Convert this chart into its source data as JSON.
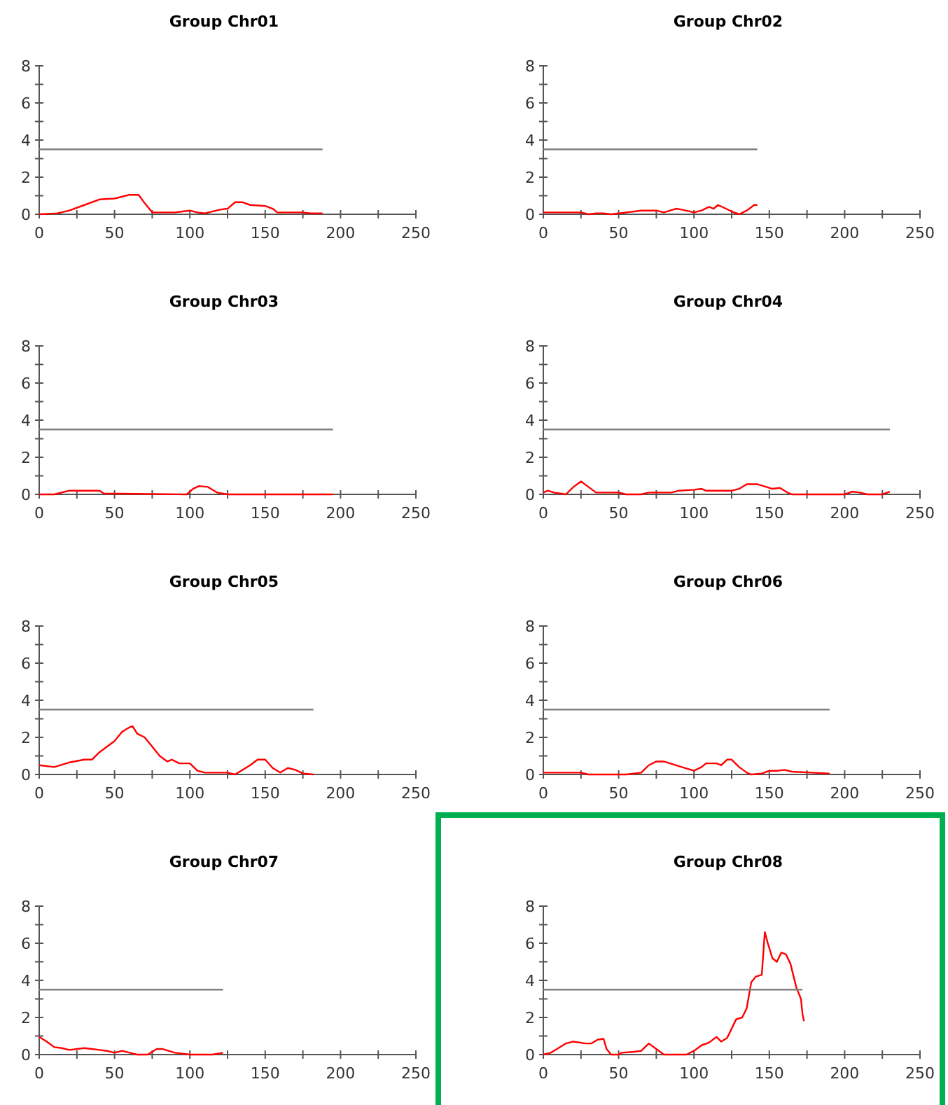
{
  "chart_data": [
    {
      "type": "line",
      "title": "Group Chr01",
      "xlim": [
        0,
        250
      ],
      "xticks": [
        0,
        {
          "value": 25,
          "label": null
        },
        50,
        {
          "value": 75,
          "label": null
        },
        100,
        {
          "value": 125,
          "label": null
        },
        150,
        {
          "value": 175,
          "label": null
        },
        200,
        {
          "value": 225,
          "label": null
        },
        250
      ],
      "ylim": [
        0,
        8
      ],
      "yticks": [
        0,
        {
          "value": 1,
          "label": null
        },
        2,
        {
          "value": 3,
          "label": null
        },
        4,
        {
          "value": 5,
          "label": null
        },
        6,
        {
          "value": 7,
          "label": null
        },
        8
      ],
      "series": [
        {
          "color": "#ff0000",
          "x": [
            0,
            12,
            20,
            30,
            40,
            50,
            60,
            66,
            70,
            75,
            90,
            100,
            105,
            110,
            120,
            125,
            130,
            135,
            140,
            150,
            155,
            158,
            175,
            180,
            188
          ],
          "values": [
            0,
            0.05,
            0.2,
            0.5,
            0.8,
            0.85,
            1.05,
            1.05,
            0.6,
            0.1,
            0.1,
            0.2,
            0.1,
            0.05,
            0.25,
            0.3,
            0.65,
            0.65,
            0.5,
            0.45,
            0.3,
            0.1,
            0.1,
            0.05,
            0.05
          ]
        },
        {
          "color": "#808080",
          "x": [
            0,
            188
          ],
          "values": [
            3.5,
            3.5
          ]
        }
      ]
    },
    {
      "type": "line",
      "title": "Group Chr02",
      "xlim": [
        0,
        250
      ],
      "xticks": [
        0,
        {
          "value": 25,
          "label": null
        },
        50,
        {
          "value": 75,
          "label": null
        },
        100,
        {
          "value": 125,
          "label": null
        },
        150,
        {
          "value": 175,
          "label": null
        },
        200,
        {
          "value": 225,
          "label": null
        },
        250
      ],
      "ylim": [
        0,
        8
      ],
      "yticks": [
        0,
        {
          "value": 1,
          "label": null
        },
        2,
        {
          "value": 3,
          "label": null
        },
        4,
        {
          "value": 5,
          "label": null
        },
        6,
        {
          "value": 7,
          "label": null
        },
        8
      ],
      "series": [
        {
          "color": "#ff0000",
          "x": [
            0,
            25,
            30,
            35,
            40,
            45,
            55,
            65,
            75,
            80,
            88,
            92,
            100,
            105,
            110,
            113,
            116,
            120,
            125,
            130,
            135,
            140,
            142
          ],
          "values": [
            0.1,
            0.1,
            0,
            0.05,
            0.05,
            0,
            0.1,
            0.2,
            0.2,
            0.1,
            0.3,
            0.25,
            0.1,
            0.2,
            0.4,
            0.3,
            0.5,
            0.35,
            0.15,
            0,
            0.2,
            0.5,
            0.5
          ]
        },
        {
          "color": "#808080",
          "x": [
            0,
            142
          ],
          "values": [
            3.5,
            3.5
          ]
        }
      ]
    },
    {
      "type": "line",
      "title": "Group Chr03",
      "xlim": [
        0,
        250
      ],
      "xticks": [
        0,
        {
          "value": 25,
          "label": null
        },
        50,
        {
          "value": 75,
          "label": null
        },
        100,
        {
          "value": 125,
          "label": null
        },
        150,
        {
          "value": 175,
          "label": null
        },
        200,
        {
          "value": 225,
          "label": null
        },
        250
      ],
      "ylim": [
        0,
        8
      ],
      "yticks": [
        0,
        {
          "value": 1,
          "label": null
        },
        2,
        {
          "value": 3,
          "label": null
        },
        4,
        {
          "value": 5,
          "label": null
        },
        6,
        {
          "value": 7,
          "label": null
        },
        8
      ],
      "series": [
        {
          "color": "#ff0000",
          "x": [
            0,
            10,
            20,
            40,
            43,
            98,
            102,
            106,
            112,
            118,
            125,
            195
          ],
          "values": [
            0,
            0,
            0.2,
            0.2,
            0.05,
            0,
            0.3,
            0.45,
            0.4,
            0.1,
            0,
            0
          ]
        },
        {
          "color": "#808080",
          "x": [
            0,
            195
          ],
          "values": [
            3.5,
            3.5
          ]
        }
      ]
    },
    {
      "type": "line",
      "title": "Group Chr04",
      "xlim": [
        0,
        250
      ],
      "xticks": [
        0,
        {
          "value": 25,
          "label": null
        },
        50,
        {
          "value": 75,
          "label": null
        },
        100,
        {
          "value": 125,
          "label": null
        },
        150,
        {
          "value": 175,
          "label": null
        },
        200,
        {
          "value": 225,
          "label": null
        },
        250
      ],
      "ylim": [
        0,
        8
      ],
      "yticks": [
        0,
        {
          "value": 1,
          "label": null
        },
        2,
        {
          "value": 3,
          "label": null
        },
        4,
        {
          "value": 5,
          "label": null
        },
        6,
        {
          "value": 7,
          "label": null
        },
        8
      ],
      "series": [
        {
          "color": "#ff0000",
          "x": [
            0,
            3,
            7,
            15,
            20,
            25,
            30,
            35,
            50,
            55,
            65,
            70,
            85,
            90,
            100,
            105,
            108,
            125,
            130,
            135,
            142,
            148,
            152,
            157,
            162,
            165,
            200,
            205,
            210,
            215,
            225,
            230
          ],
          "values": [
            0.1,
            0.2,
            0.1,
            0,
            0.4,
            0.7,
            0.4,
            0.1,
            0.1,
            0,
            0,
            0.1,
            0.1,
            0.2,
            0.25,
            0.3,
            0.2,
            0.2,
            0.3,
            0.55,
            0.55,
            0.4,
            0.3,
            0.35,
            0.1,
            0,
            0,
            0.15,
            0.1,
            0,
            0,
            0.15
          ]
        },
        {
          "color": "#808080",
          "x": [
            0,
            230
          ],
          "values": [
            3.5,
            3.5
          ]
        }
      ]
    },
    {
      "type": "line",
      "title": "Group Chr05",
      "xlim": [
        0,
        250
      ],
      "xticks": [
        0,
        {
          "value": 25,
          "label": null
        },
        50,
        {
          "value": 75,
          "label": null
        },
        100,
        {
          "value": 125,
          "label": null
        },
        150,
        {
          "value": 175,
          "label": null
        },
        200,
        {
          "value": 225,
          "label": null
        },
        250
      ],
      "ylim": [
        0,
        8
      ],
      "yticks": [
        0,
        {
          "value": 1,
          "label": null
        },
        2,
        {
          "value": 3,
          "label": null
        },
        4,
        {
          "value": 5,
          "label": null
        },
        6,
        {
          "value": 7,
          "label": null
        },
        8
      ],
      "series": [
        {
          "color": "#ff0000",
          "x": [
            0,
            10,
            20,
            30,
            35,
            40,
            50,
            55,
            60,
            62,
            65,
            70,
            75,
            80,
            85,
            88,
            93,
            100,
            105,
            110,
            125,
            130,
            140,
            145,
            150,
            155,
            160,
            165,
            170,
            175,
            182
          ],
          "values": [
            0.5,
            0.4,
            0.65,
            0.8,
            0.8,
            1.2,
            1.8,
            2.3,
            2.55,
            2.6,
            2.2,
            2,
            1.5,
            1,
            0.7,
            0.8,
            0.6,
            0.6,
            0.2,
            0.1,
            0.1,
            0,
            0.5,
            0.8,
            0.8,
            0.35,
            0.1,
            0.35,
            0.25,
            0.05,
            0
          ]
        },
        {
          "color": "#808080",
          "x": [
            0,
            182
          ],
          "values": [
            3.5,
            3.5
          ]
        }
      ]
    },
    {
      "type": "line",
      "title": "Group Chr06",
      "xlim": [
        0,
        250
      ],
      "xticks": [
        0,
        {
          "value": 25,
          "label": null
        },
        50,
        {
          "value": 75,
          "label": null
        },
        100,
        {
          "value": 125,
          "label": null
        },
        150,
        {
          "value": 175,
          "label": null
        },
        200,
        {
          "value": 225,
          "label": null
        },
        250
      ],
      "ylim": [
        0,
        8
      ],
      "yticks": [
        0,
        {
          "value": 1,
          "label": null
        },
        2,
        {
          "value": 3,
          "label": null
        },
        4,
        {
          "value": 5,
          "label": null
        },
        6,
        {
          "value": 7,
          "label": null
        },
        8
      ],
      "series": [
        {
          "color": "#ff0000",
          "x": [
            0,
            25,
            30,
            55,
            65,
            70,
            75,
            80,
            90,
            100,
            105,
            108,
            115,
            118,
            122,
            125,
            130,
            135,
            138,
            145,
            150,
            155,
            160,
            165,
            190
          ],
          "values": [
            0.1,
            0.1,
            0,
            0,
            0.1,
            0.5,
            0.7,
            0.7,
            0.45,
            0.2,
            0.4,
            0.6,
            0.6,
            0.5,
            0.8,
            0.8,
            0.4,
            0.1,
            0,
            0.05,
            0.2,
            0.2,
            0.25,
            0.15,
            0.05
          ]
        },
        {
          "color": "#808080",
          "x": [
            0,
            190
          ],
          "values": [
            3.5,
            3.5
          ]
        }
      ]
    },
    {
      "type": "line",
      "title": "Group Chr07",
      "xlim": [
        0,
        250
      ],
      "xticks": [
        0,
        {
          "value": 25,
          "label": null
        },
        50,
        {
          "value": 75,
          "label": null
        },
        100,
        {
          "value": 125,
          "label": null
        },
        150,
        {
          "value": 175,
          "label": null
        },
        200,
        {
          "value": 225,
          "label": null
        },
        250
      ],
      "ylim": [
        0,
        8
      ],
      "yticks": [
        0,
        {
          "value": 1,
          "label": null
        },
        2,
        {
          "value": 3,
          "label": null
        },
        4,
        {
          "value": 5,
          "label": null
        },
        6,
        {
          "value": 7,
          "label": null
        },
        8
      ],
      "series": [
        {
          "color": "#ff0000",
          "x": [
            0,
            5,
            10,
            15,
            20,
            25,
            30,
            35,
            40,
            45,
            50,
            55,
            60,
            65,
            72,
            78,
            82,
            90,
            100,
            115,
            122
          ],
          "values": [
            0.95,
            0.7,
            0.4,
            0.35,
            0.25,
            0.3,
            0.35,
            0.3,
            0.25,
            0.2,
            0.1,
            0.2,
            0.1,
            0,
            0,
            0.3,
            0.3,
            0.1,
            0,
            0,
            0.1
          ]
        },
        {
          "color": "#808080",
          "x": [
            0,
            122
          ],
          "values": [
            3.5,
            3.5
          ]
        }
      ]
    },
    {
      "type": "line",
      "title": "Group Chr08",
      "xlim": [
        0,
        250
      ],
      "xticks": [
        0,
        {
          "value": 25,
          "label": null
        },
        50,
        {
          "value": 75,
          "label": null
        },
        100,
        {
          "value": 125,
          "label": null
        },
        150,
        {
          "value": 175,
          "label": null
        },
        200,
        {
          "value": 225,
          "label": null
        },
        250
      ],
      "ylim": [
        0,
        8
      ],
      "yticks": [
        0,
        {
          "value": 1,
          "label": null
        },
        2,
        {
          "value": 3,
          "label": null
        },
        4,
        {
          "value": 5,
          "label": null
        },
        6,
        {
          "value": 7,
          "label": null
        },
        8
      ],
      "series": [
        {
          "color": "#ff0000",
          "x": [
            0,
            5,
            10,
            15,
            20,
            28,
            32,
            36,
            40,
            42,
            45,
            50,
            52,
            60,
            65,
            70,
            75,
            80,
            95,
            100,
            105,
            110,
            115,
            118,
            122,
            125,
            128,
            132,
            135,
            138,
            141,
            145,
            147,
            149,
            152,
            155,
            158,
            161,
            164,
            168,
            171,
            172,
            173
          ],
          "values": [
            0,
            0.1,
            0.35,
            0.6,
            0.7,
            0.6,
            0.6,
            0.8,
            0.85,
            0.3,
            0,
            0,
            0.1,
            0.15,
            0.2,
            0.6,
            0.3,
            0,
            0,
            0.2,
            0.5,
            0.65,
            0.95,
            0.7,
            0.9,
            1.4,
            1.9,
            2,
            2.5,
            3.9,
            4.2,
            4.3,
            6.6,
            6,
            5.2,
            5,
            5.5,
            5.4,
            4.9,
            3.6,
            3,
            2.2,
            1.8
          ]
        },
        {
          "color": "#808080",
          "x": [
            0,
            172
          ],
          "values": [
            3.5,
            3.5
          ]
        }
      ]
    }
  ]
}
